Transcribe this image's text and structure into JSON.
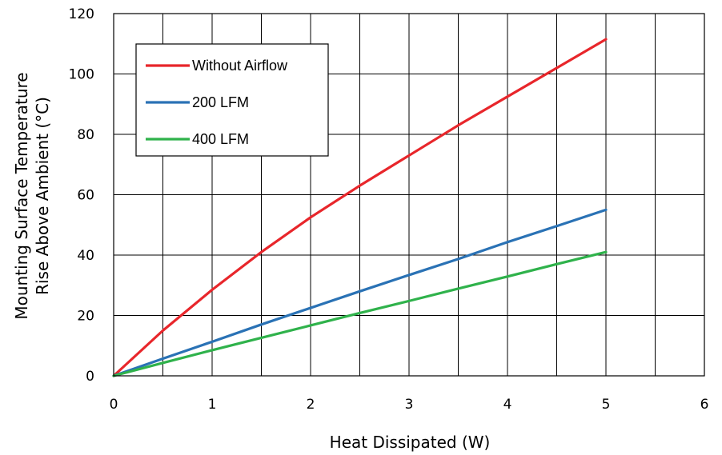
{
  "chart_data": {
    "type": "line",
    "title": "",
    "xlabel": "Heat Dissipated (W)",
    "ylabel_line1": "Mounting Surface Temperature",
    "ylabel_line2": "Rise Above  Ambient (°C)",
    "xlim": [
      0,
      6
    ],
    "ylim": [
      0,
      120
    ],
    "x_ticks": [
      0,
      1,
      2,
      3,
      4,
      5,
      6
    ],
    "y_ticks": [
      0,
      20,
      40,
      60,
      80,
      100,
      120
    ],
    "x_grid_step": 0.5,
    "y_grid_step": 20,
    "grid": true,
    "legend_position": "top-left",
    "series": [
      {
        "name": "Without Airflow",
        "color": "#e8262b",
        "x": [
          0,
          0.5,
          1,
          1.5,
          2,
          2.5,
          3,
          3.5,
          4,
          4.5,
          5
        ],
        "y": [
          0,
          15,
          28.5,
          41,
          52.5,
          63,
          73,
          83,
          92.5,
          102,
          111.5
        ]
      },
      {
        "name": "200 LFM",
        "color": "#2a72b5",
        "x": [
          0,
          0.5,
          1,
          1.5,
          2,
          2.5,
          3,
          3.5,
          4,
          4.5,
          5
        ],
        "y": [
          0,
          5.7,
          11.3,
          17,
          22.5,
          28,
          33.4,
          38.7,
          44.3,
          49.6,
          55
        ]
      },
      {
        "name": "400 LFM",
        "color": "#2fb24b",
        "x": [
          0,
          0.5,
          1,
          1.5,
          2,
          2.5,
          3,
          3.5,
          4,
          4.5,
          5
        ],
        "y": [
          0,
          4.3,
          8.5,
          12.6,
          16.7,
          20.8,
          24.8,
          28.9,
          32.9,
          37,
          41
        ]
      }
    ]
  }
}
